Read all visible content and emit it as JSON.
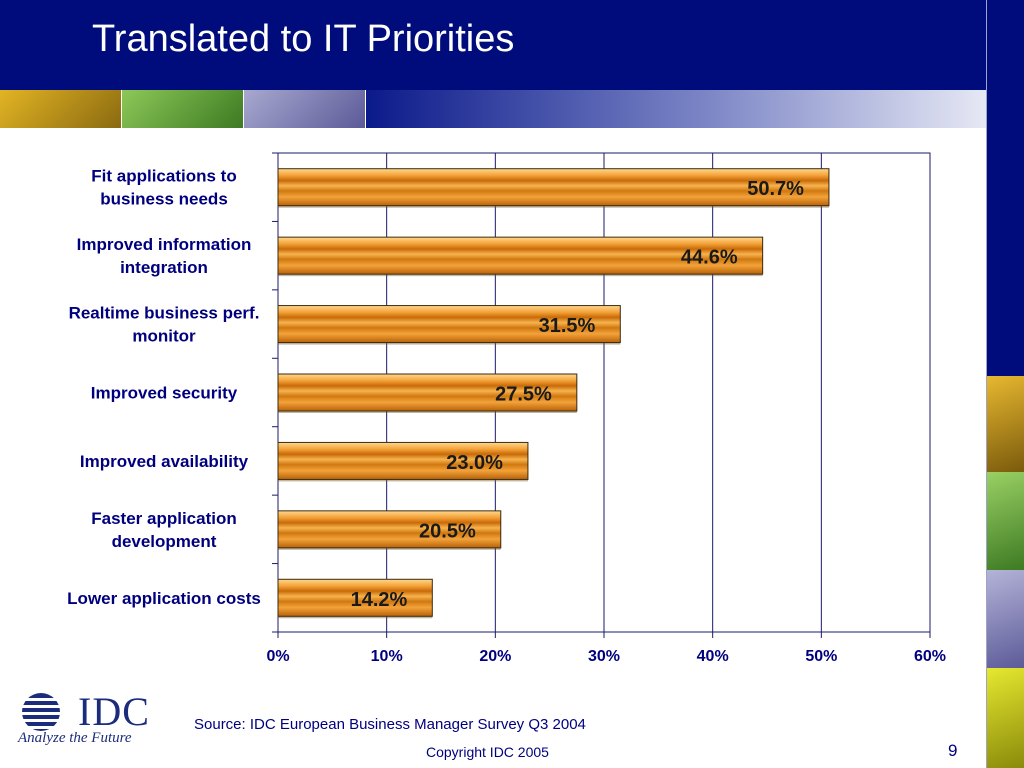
{
  "slide": {
    "title": "Translated to IT Priorities",
    "source": "Source: IDC European Business Manager Survey Q3 2004",
    "copyright": "Copyright IDC 2005",
    "page_number": "9"
  },
  "logo": {
    "name": "IDC",
    "tagline": "Analyze the Future"
  },
  "colors": {
    "header_bg": "#000c7c",
    "text_blue": "#00007f",
    "bar_fill": "#f0961e",
    "bar_edge": "#3a2a10",
    "grid": "#1a1a6a"
  },
  "decor_tiles": [
    "#c8a018",
    "#6aa23e",
    "#7c7ab0",
    "#c8c81a"
  ],
  "chart_data": {
    "type": "bar",
    "orientation": "horizontal",
    "categories": [
      [
        "Fit applications to",
        "business needs"
      ],
      [
        "Improved information",
        "integration"
      ],
      [
        "Realtime business perf.",
        "monitor"
      ],
      [
        "Improved security"
      ],
      [
        "Improved availability"
      ],
      [
        "Faster application",
        "development"
      ],
      [
        "Lower application costs"
      ]
    ],
    "values": [
      50.7,
      44.6,
      31.5,
      27.5,
      23.0,
      20.5,
      14.2
    ],
    "value_labels": [
      "50.7%",
      "44.6%",
      "31.5%",
      "27.5%",
      "23.0%",
      "20.5%",
      "14.2%"
    ],
    "xlim": [
      0,
      60
    ],
    "ticks": [
      0,
      10,
      20,
      30,
      40,
      50,
      60
    ],
    "tick_labels": [
      "0%",
      "10%",
      "20%",
      "30%",
      "40%",
      "50%",
      "60%"
    ],
    "grid": true,
    "legend": false
  }
}
